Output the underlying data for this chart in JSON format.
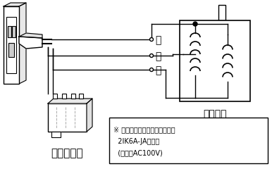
{
  "bg_color": "#ffffff",
  "line_color": "#000000",
  "gray_color": "#aaaaaa",
  "light_gray": "#cccccc",
  "label_kuro": "黒",
  "label_aka": "赤",
  "label_shiro": "白",
  "label_motor": "モーター",
  "label_condenser": "コンデンサ",
  "note_line1": "※ 単相インダクションモーター",
  "note_line2": "  2IK6A-JAの場合",
  "note_line3": "  (電圧：AC100V)",
  "figsize": [
    3.86,
    2.51
  ],
  "dpi": 100
}
